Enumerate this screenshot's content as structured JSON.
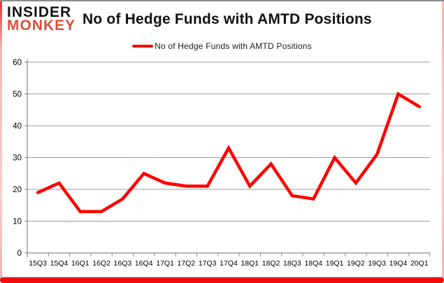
{
  "branding": {
    "logo_line1": "INSIDER",
    "logo_line2": "MONKEY"
  },
  "header": {
    "title": "No of Hedge Funds with AMTD Positions"
  },
  "legend": {
    "label": "No of Hedge Funds with AMTD Positions"
  },
  "chart_data": {
    "type": "line",
    "title": "No of Hedge Funds with AMTD Positions",
    "categories": [
      "15Q3",
      "15Q4",
      "16Q1",
      "16Q2",
      "16Q3",
      "16Q4",
      "17Q1",
      "17Q2",
      "17Q3",
      "17Q4",
      "18Q1",
      "18Q2",
      "18Q3",
      "18Q4",
      "19Q1",
      "19Q2",
      "19Q3",
      "19Q4",
      "20Q1"
    ],
    "series": [
      {
        "name": "No of Hedge Funds with AMTD Positions",
        "values": [
          19,
          22,
          13,
          13,
          17,
          25,
          22,
          21,
          21,
          33,
          21,
          28,
          18,
          17,
          30,
          22,
          31,
          50,
          46
        ]
      }
    ],
    "xlabel": "",
    "ylabel": "",
    "ylim": [
      0,
      60
    ],
    "yticks": [
      0,
      10,
      20,
      30,
      40,
      50,
      60
    ],
    "grid": "horizontal",
    "legend_position": "top-center"
  },
  "colors": {
    "line_red": "#fe0000",
    "grid_gray": "#9b9b9b",
    "axis_gray": "#8e8e8e",
    "label_black": "#000000",
    "logo_red": "#df4f3b",
    "frame_red": "#f20d0d"
  }
}
